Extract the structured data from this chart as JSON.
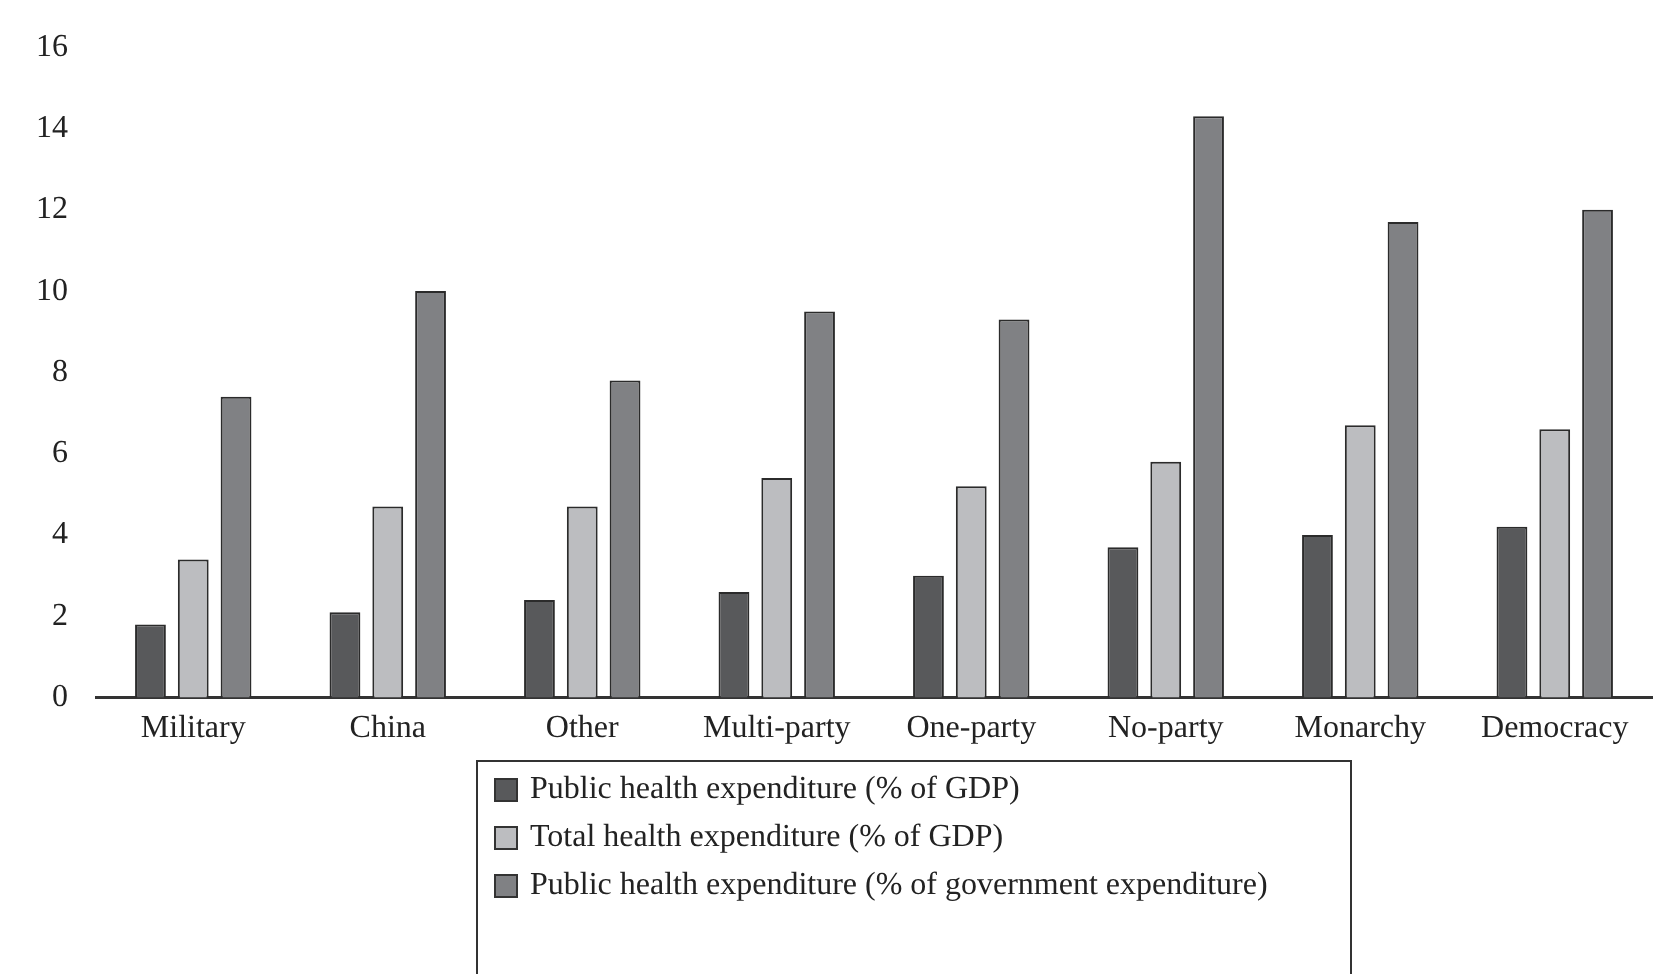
{
  "chart_data": {
    "type": "bar",
    "categories": [
      "Military",
      "China",
      "Other",
      "Multi-party",
      "One-party",
      "No-party",
      "Monarchy",
      "Democracy"
    ],
    "series": [
      {
        "name": "Public health expenditure (% of GDP)",
        "color": "#58595b",
        "values": [
          1.8,
          2.1,
          2.4,
          2.6,
          3.0,
          3.7,
          4.0,
          4.2
        ]
      },
      {
        "name": "Total health expenditure (% of GDP)",
        "color": "#bcbdc0",
        "values": [
          3.4,
          4.7,
          4.7,
          5.4,
          5.2,
          5.8,
          6.7,
          6.6
        ]
      },
      {
        "name": "Public health expenditure (% of government expenditure)",
        "color": "#808184",
        "values": [
          7.4,
          10.0,
          7.8,
          9.5,
          9.3,
          14.3,
          11.7,
          12.0
        ]
      }
    ],
    "ylim": [
      0,
      16
    ],
    "yticks": [
      0,
      2,
      4,
      6,
      8,
      10,
      12,
      14,
      16
    ],
    "grid": false,
    "legend": "bottom"
  }
}
